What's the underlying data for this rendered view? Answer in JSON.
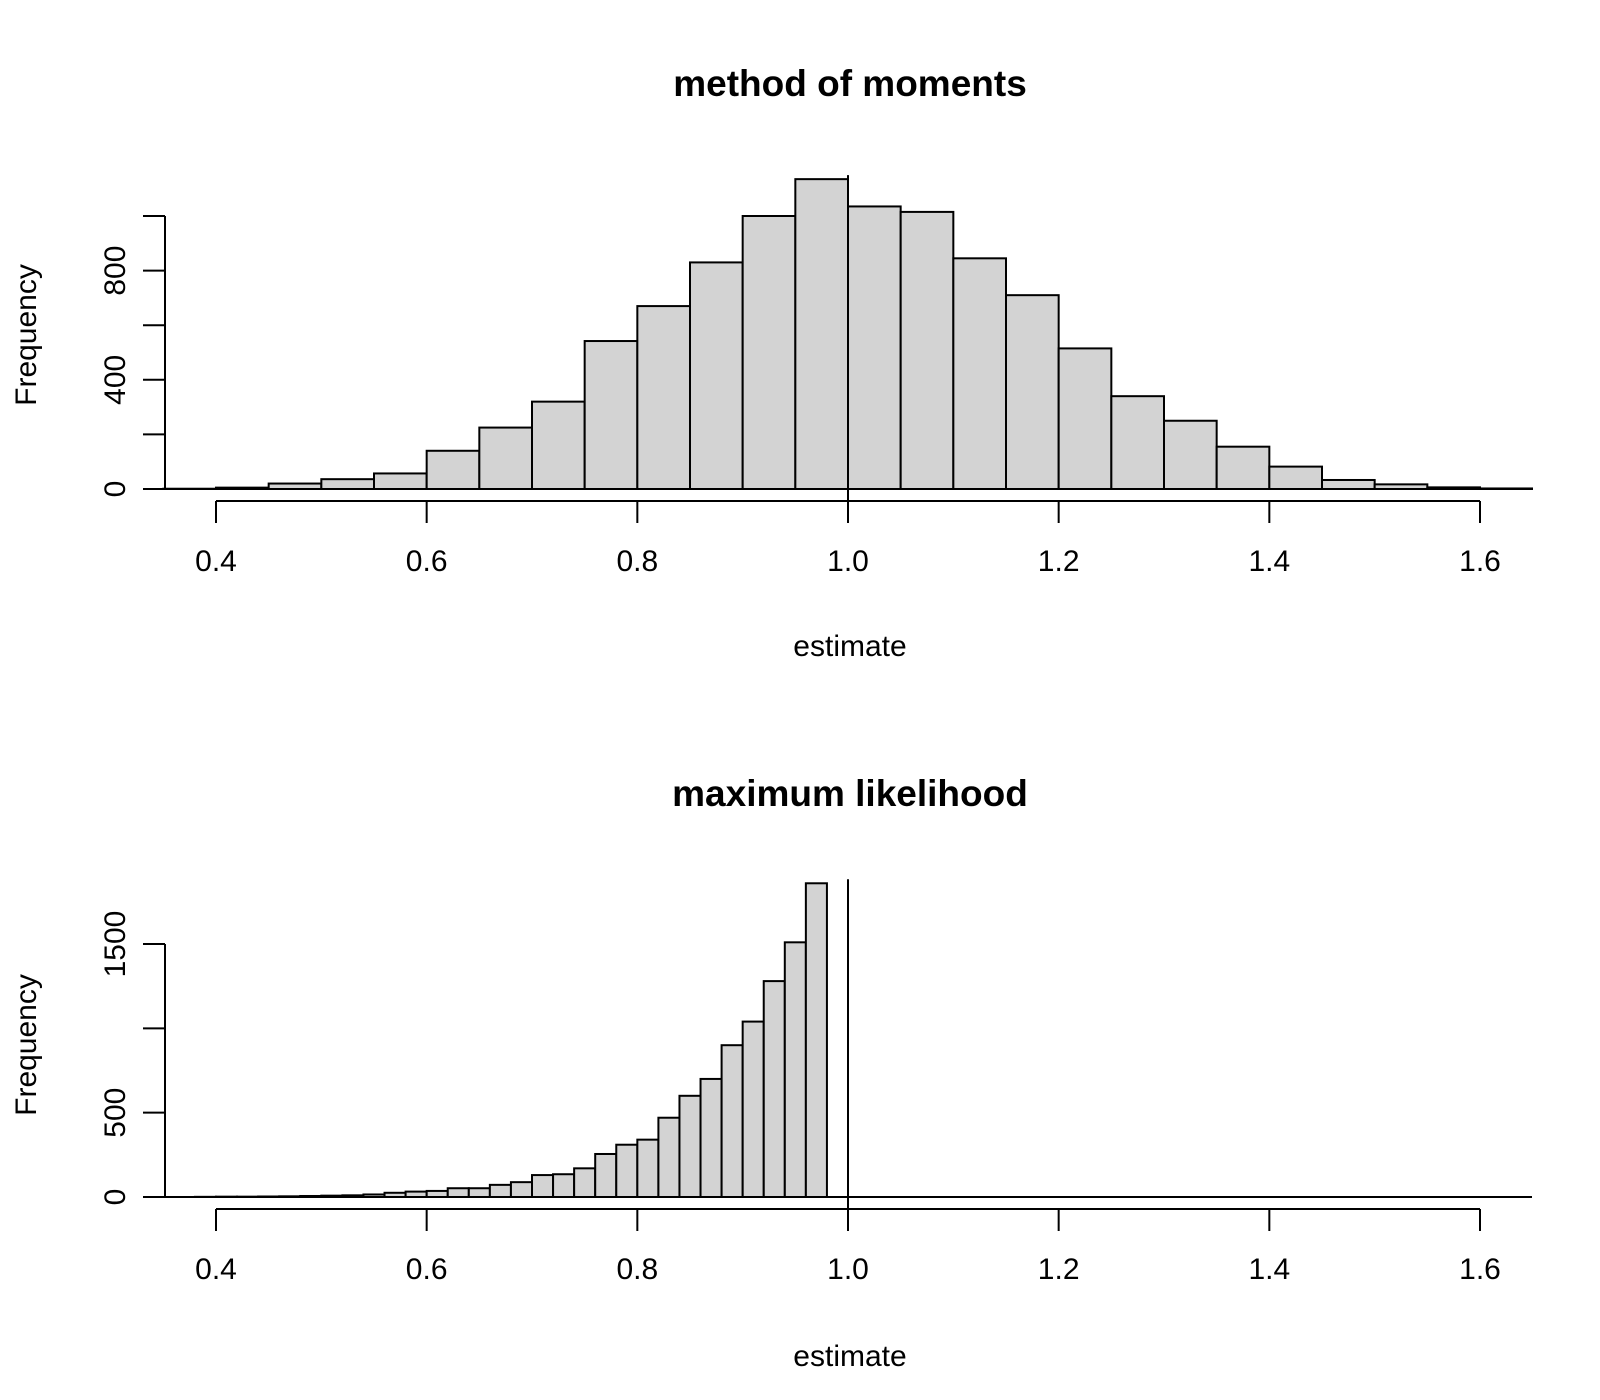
{
  "chart_data": [
    {
      "type": "bar",
      "title": "method of moments",
      "xlabel": "estimate",
      "ylabel": "Frequency",
      "xlim": [
        0.4,
        1.6
      ],
      "ylim": [
        0,
        1000
      ],
      "x_ticks": [
        "0.4",
        "0.6",
        "0.8",
        "1.0",
        "1.2",
        "1.4",
        "1.6"
      ],
      "y_ticks": [
        "0",
        "400",
        "800"
      ],
      "y_tick_values": [
        0,
        200,
        400,
        600,
        800,
        1000
      ],
      "y_labeled_values": [
        0,
        400,
        800
      ],
      "reference_line_x": 1.0,
      "grid": false,
      "bin_width": 0.05,
      "bin_start": 0.35,
      "values": [
        1,
        5,
        20,
        36,
        57,
        140,
        225,
        320,
        542,
        670,
        830,
        1000,
        1135,
        1035,
        1015,
        845,
        710,
        515,
        340,
        250,
        155,
        82,
        33,
        17,
        6,
        2
      ]
    },
    {
      "type": "bar",
      "title": "maximum likelihood",
      "xlabel": "estimate",
      "ylabel": "Frequency",
      "xlim": [
        0.4,
        1.6
      ],
      "ylim": [
        0,
        1500
      ],
      "x_ticks": [
        "0.4",
        "0.6",
        "0.8",
        "1.0",
        "1.2",
        "1.4",
        "1.6"
      ],
      "y_ticks": [
        "0",
        "500",
        "1500"
      ],
      "y_tick_values": [
        0,
        500,
        1000,
        1500
      ],
      "y_labeled_values": [
        0,
        500,
        1500
      ],
      "reference_line_x": 1.0,
      "grid": false,
      "bin_width": 0.02,
      "bin_start": 0.38,
      "values": [
        1,
        2,
        2,
        3,
        4,
        6,
        8,
        10,
        15,
        25,
        32,
        36,
        52,
        52,
        72,
        88,
        130,
        135,
        170,
        255,
        310,
        340,
        470,
        600,
        700,
        900,
        1040,
        1280,
        1510,
        1860
      ]
    }
  ]
}
